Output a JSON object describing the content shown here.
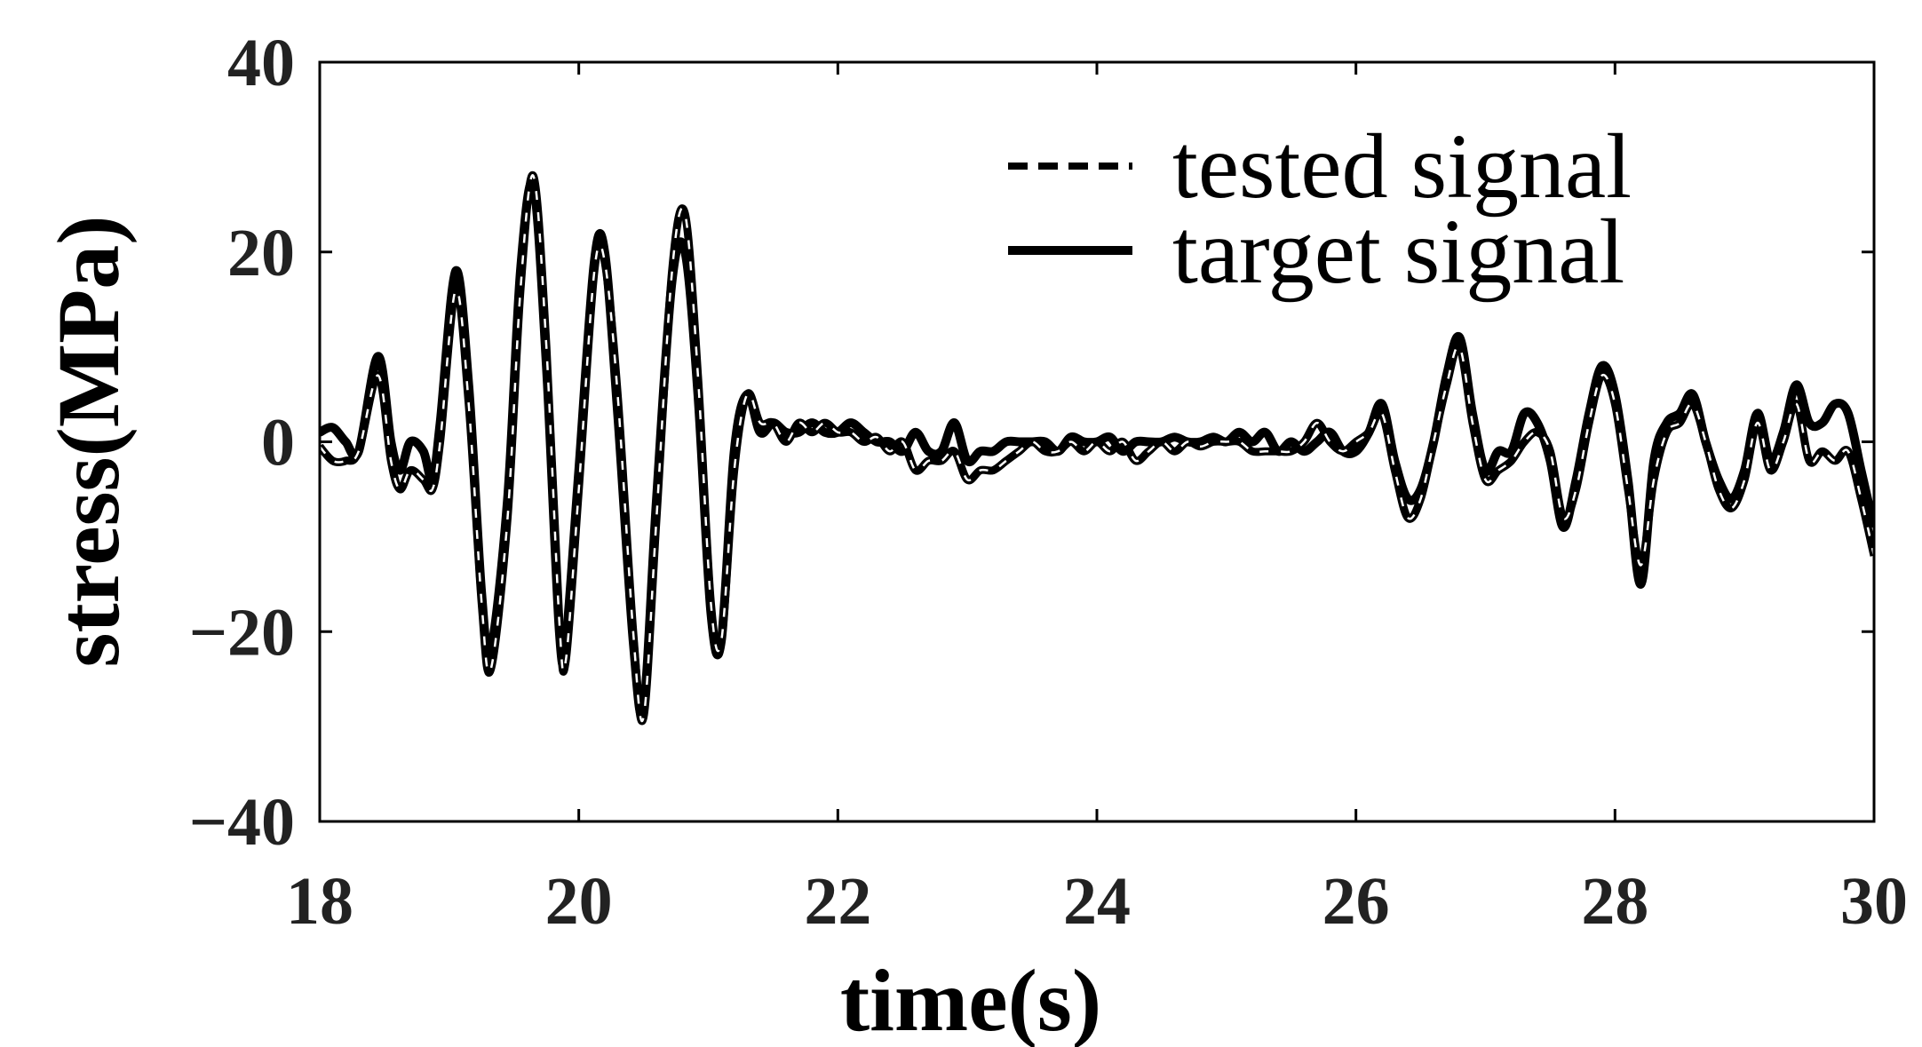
{
  "chart_data": {
    "type": "line",
    "title": "",
    "xlabel": "time(s)",
    "ylabel": "stress(MPa)",
    "xlim": [
      18,
      30
    ],
    "ylim": [
      -40,
      40
    ],
    "xticks": [
      18,
      20,
      22,
      24,
      26,
      28,
      30
    ],
    "yticks": [
      -40,
      -20,
      0,
      20,
      40
    ],
    "xtick_labels": [
      "18",
      "20",
      "22",
      "24",
      "26",
      "28",
      "30"
    ],
    "ytick_labels": [
      "−40",
      "−20",
      "0",
      "20",
      "40"
    ],
    "grid": false,
    "legend_position": "top-right",
    "series": [
      {
        "name": "tested signal",
        "style": "dashed",
        "color": "#000000",
        "points": [
          [
            18.0,
            -0.5
          ],
          [
            18.1,
            -2
          ],
          [
            18.2,
            -2
          ],
          [
            18.3,
            -1
          ],
          [
            18.45,
            7
          ],
          [
            18.55,
            -2
          ],
          [
            18.62,
            -5
          ],
          [
            18.7,
            -3
          ],
          [
            18.8,
            -4
          ],
          [
            18.87,
            -5
          ],
          [
            18.93,
            0
          ],
          [
            19.05,
            16
          ],
          [
            19.15,
            4
          ],
          [
            19.25,
            -17
          ],
          [
            19.32,
            -24
          ],
          [
            19.45,
            -8
          ],
          [
            19.55,
            16
          ],
          [
            19.65,
            28
          ],
          [
            19.75,
            10
          ],
          [
            19.85,
            -19
          ],
          [
            19.9,
            -23
          ],
          [
            20.0,
            -5
          ],
          [
            20.12,
            18
          ],
          [
            20.2,
            19
          ],
          [
            20.3,
            5
          ],
          [
            20.42,
            -20
          ],
          [
            20.5,
            -29
          ],
          [
            20.6,
            -8
          ],
          [
            20.72,
            18
          ],
          [
            20.82,
            24
          ],
          [
            20.92,
            7
          ],
          [
            21.02,
            -17
          ],
          [
            21.1,
            -21
          ],
          [
            21.2,
            -3
          ],
          [
            21.3,
            5
          ],
          [
            21.4,
            2
          ],
          [
            21.5,
            2
          ],
          [
            21.6,
            0
          ],
          [
            21.7,
            2
          ],
          [
            21.8,
            1
          ],
          [
            21.9,
            2
          ],
          [
            22.0,
            1
          ],
          [
            22.1,
            1
          ],
          [
            22.2,
            0
          ],
          [
            22.3,
            0.5
          ],
          [
            22.4,
            -1
          ],
          [
            22.5,
            0
          ],
          [
            22.6,
            -3
          ],
          [
            22.7,
            -2
          ],
          [
            22.8,
            -2
          ],
          [
            22.9,
            -1
          ],
          [
            23.0,
            -4
          ],
          [
            23.1,
            -3
          ],
          [
            23.2,
            -3
          ],
          [
            23.3,
            -2
          ],
          [
            23.4,
            -1
          ],
          [
            23.5,
            0
          ],
          [
            23.6,
            -1
          ],
          [
            23.7,
            -1
          ],
          [
            23.8,
            0
          ],
          [
            23.9,
            -1
          ],
          [
            24.0,
            0
          ],
          [
            24.1,
            -1
          ],
          [
            24.2,
            0
          ],
          [
            24.3,
            -2
          ],
          [
            24.4,
            -1
          ],
          [
            24.5,
            0
          ],
          [
            24.6,
            -1
          ],
          [
            24.7,
            0
          ],
          [
            24.8,
            -0.5
          ],
          [
            24.9,
            0
          ],
          [
            25.0,
            0
          ],
          [
            25.1,
            0
          ],
          [
            25.2,
            -1
          ],
          [
            25.3,
            -1
          ],
          [
            25.4,
            -1
          ],
          [
            25.5,
            -1
          ],
          [
            25.6,
            0
          ],
          [
            25.7,
            2
          ],
          [
            25.8,
            0
          ],
          [
            25.9,
            -1
          ],
          [
            26.0,
            0
          ],
          [
            26.1,
            1
          ],
          [
            26.2,
            3
          ],
          [
            26.3,
            -3
          ],
          [
            26.4,
            -8
          ],
          [
            26.5,
            -6
          ],
          [
            26.6,
            0
          ],
          [
            26.7,
            6
          ],
          [
            26.8,
            10
          ],
          [
            26.9,
            2
          ],
          [
            27.0,
            -4
          ],
          [
            27.1,
            -3
          ],
          [
            27.2,
            -2
          ],
          [
            27.3,
            0
          ],
          [
            27.4,
            1
          ],
          [
            27.5,
            -1
          ],
          [
            27.6,
            -8
          ],
          [
            27.7,
            -5
          ],
          [
            27.8,
            2
          ],
          [
            27.9,
            7
          ],
          [
            28.0,
            4
          ],
          [
            28.1,
            -5
          ],
          [
            28.2,
            -13
          ],
          [
            28.3,
            -4
          ],
          [
            28.4,
            1
          ],
          [
            28.5,
            2
          ],
          [
            28.6,
            4
          ],
          [
            28.7,
            0
          ],
          [
            28.8,
            -5
          ],
          [
            28.9,
            -7
          ],
          [
            29.0,
            -4
          ],
          [
            29.1,
            2
          ],
          [
            29.2,
            -3
          ],
          [
            29.3,
            0
          ],
          [
            29.4,
            4
          ],
          [
            29.5,
            -2
          ],
          [
            29.6,
            -1
          ],
          [
            29.7,
            -2
          ],
          [
            29.8,
            -1
          ],
          [
            29.9,
            -6
          ],
          [
            30.0,
            -12
          ]
        ]
      },
      {
        "name": "target signal",
        "style": "solid",
        "color": "#000000",
        "points": [
          [
            18.0,
            1
          ],
          [
            18.1,
            1.5
          ],
          [
            18.2,
            0
          ],
          [
            18.3,
            -1
          ],
          [
            18.45,
            9
          ],
          [
            18.55,
            0
          ],
          [
            18.62,
            -3
          ],
          [
            18.7,
            0
          ],
          [
            18.8,
            -1
          ],
          [
            18.87,
            -4
          ],
          [
            18.93,
            2
          ],
          [
            19.05,
            18
          ],
          [
            19.15,
            6
          ],
          [
            19.25,
            -16
          ],
          [
            19.32,
            -22
          ],
          [
            19.45,
            -6
          ],
          [
            19.55,
            18
          ],
          [
            19.65,
            27
          ],
          [
            19.75,
            8
          ],
          [
            19.85,
            -20
          ],
          [
            19.9,
            -21
          ],
          [
            20.0,
            -3
          ],
          [
            20.12,
            19
          ],
          [
            20.2,
            20
          ],
          [
            20.3,
            3
          ],
          [
            20.42,
            -21
          ],
          [
            20.5,
            -28
          ],
          [
            20.6,
            -6
          ],
          [
            20.72,
            17
          ],
          [
            20.82,
            20
          ],
          [
            20.92,
            5
          ],
          [
            21.02,
            -18
          ],
          [
            21.1,
            -21
          ],
          [
            21.2,
            -1
          ],
          [
            21.3,
            5
          ],
          [
            21.4,
            1
          ],
          [
            21.5,
            2
          ],
          [
            21.6,
            1
          ],
          [
            21.7,
            1
          ],
          [
            21.8,
            2
          ],
          [
            21.9,
            1
          ],
          [
            22.0,
            1
          ],
          [
            22.1,
            2
          ],
          [
            22.2,
            1
          ],
          [
            22.3,
            0
          ],
          [
            22.4,
            0
          ],
          [
            22.5,
            -1
          ],
          [
            22.6,
            1
          ],
          [
            22.7,
            -1
          ],
          [
            22.8,
            -1
          ],
          [
            22.9,
            2
          ],
          [
            23.0,
            -2
          ],
          [
            23.1,
            -1
          ],
          [
            23.2,
            -1
          ],
          [
            23.3,
            0
          ],
          [
            23.4,
            0
          ],
          [
            23.5,
            0
          ],
          [
            23.6,
            0
          ],
          [
            23.7,
            -1
          ],
          [
            23.8,
            0.5
          ],
          [
            23.9,
            0
          ],
          [
            24.0,
            0
          ],
          [
            24.1,
            0.5
          ],
          [
            24.2,
            -1
          ],
          [
            24.3,
            0
          ],
          [
            24.4,
            0
          ],
          [
            24.5,
            0
          ],
          [
            24.6,
            0.5
          ],
          [
            24.7,
            0
          ],
          [
            24.8,
            0
          ],
          [
            24.9,
            0.5
          ],
          [
            25.0,
            0
          ],
          [
            25.1,
            1
          ],
          [
            25.2,
            0
          ],
          [
            25.3,
            1
          ],
          [
            25.4,
            -1
          ],
          [
            25.5,
            0
          ],
          [
            25.6,
            -1
          ],
          [
            25.7,
            0
          ],
          [
            25.8,
            1
          ],
          [
            25.9,
            -1
          ],
          [
            26.0,
            -1
          ],
          [
            26.1,
            1
          ],
          [
            26.2,
            4
          ],
          [
            26.3,
            -2
          ],
          [
            26.4,
            -6
          ],
          [
            26.5,
            -5
          ],
          [
            26.6,
            0
          ],
          [
            26.7,
            7
          ],
          [
            26.8,
            11
          ],
          [
            26.9,
            3
          ],
          [
            27.0,
            -3
          ],
          [
            27.1,
            -1
          ],
          [
            27.2,
            -1
          ],
          [
            27.3,
            3
          ],
          [
            27.4,
            2
          ],
          [
            27.5,
            -2
          ],
          [
            27.6,
            -9
          ],
          [
            27.7,
            -4
          ],
          [
            27.8,
            3
          ],
          [
            27.9,
            8
          ],
          [
            28.0,
            5
          ],
          [
            28.1,
            -4
          ],
          [
            28.2,
            -15
          ],
          [
            28.3,
            -2
          ],
          [
            28.4,
            2
          ],
          [
            28.5,
            3
          ],
          [
            28.6,
            5
          ],
          [
            28.7,
            0
          ],
          [
            28.8,
            -4
          ],
          [
            28.9,
            -6
          ],
          [
            29.0,
            -3
          ],
          [
            29.1,
            3
          ],
          [
            29.2,
            -2
          ],
          [
            29.3,
            1
          ],
          [
            29.4,
            6
          ],
          [
            29.5,
            2
          ],
          [
            29.6,
            2
          ],
          [
            29.7,
            4
          ],
          [
            29.8,
            3
          ],
          [
            29.9,
            -3
          ],
          [
            30.0,
            -9
          ]
        ]
      }
    ]
  }
}
